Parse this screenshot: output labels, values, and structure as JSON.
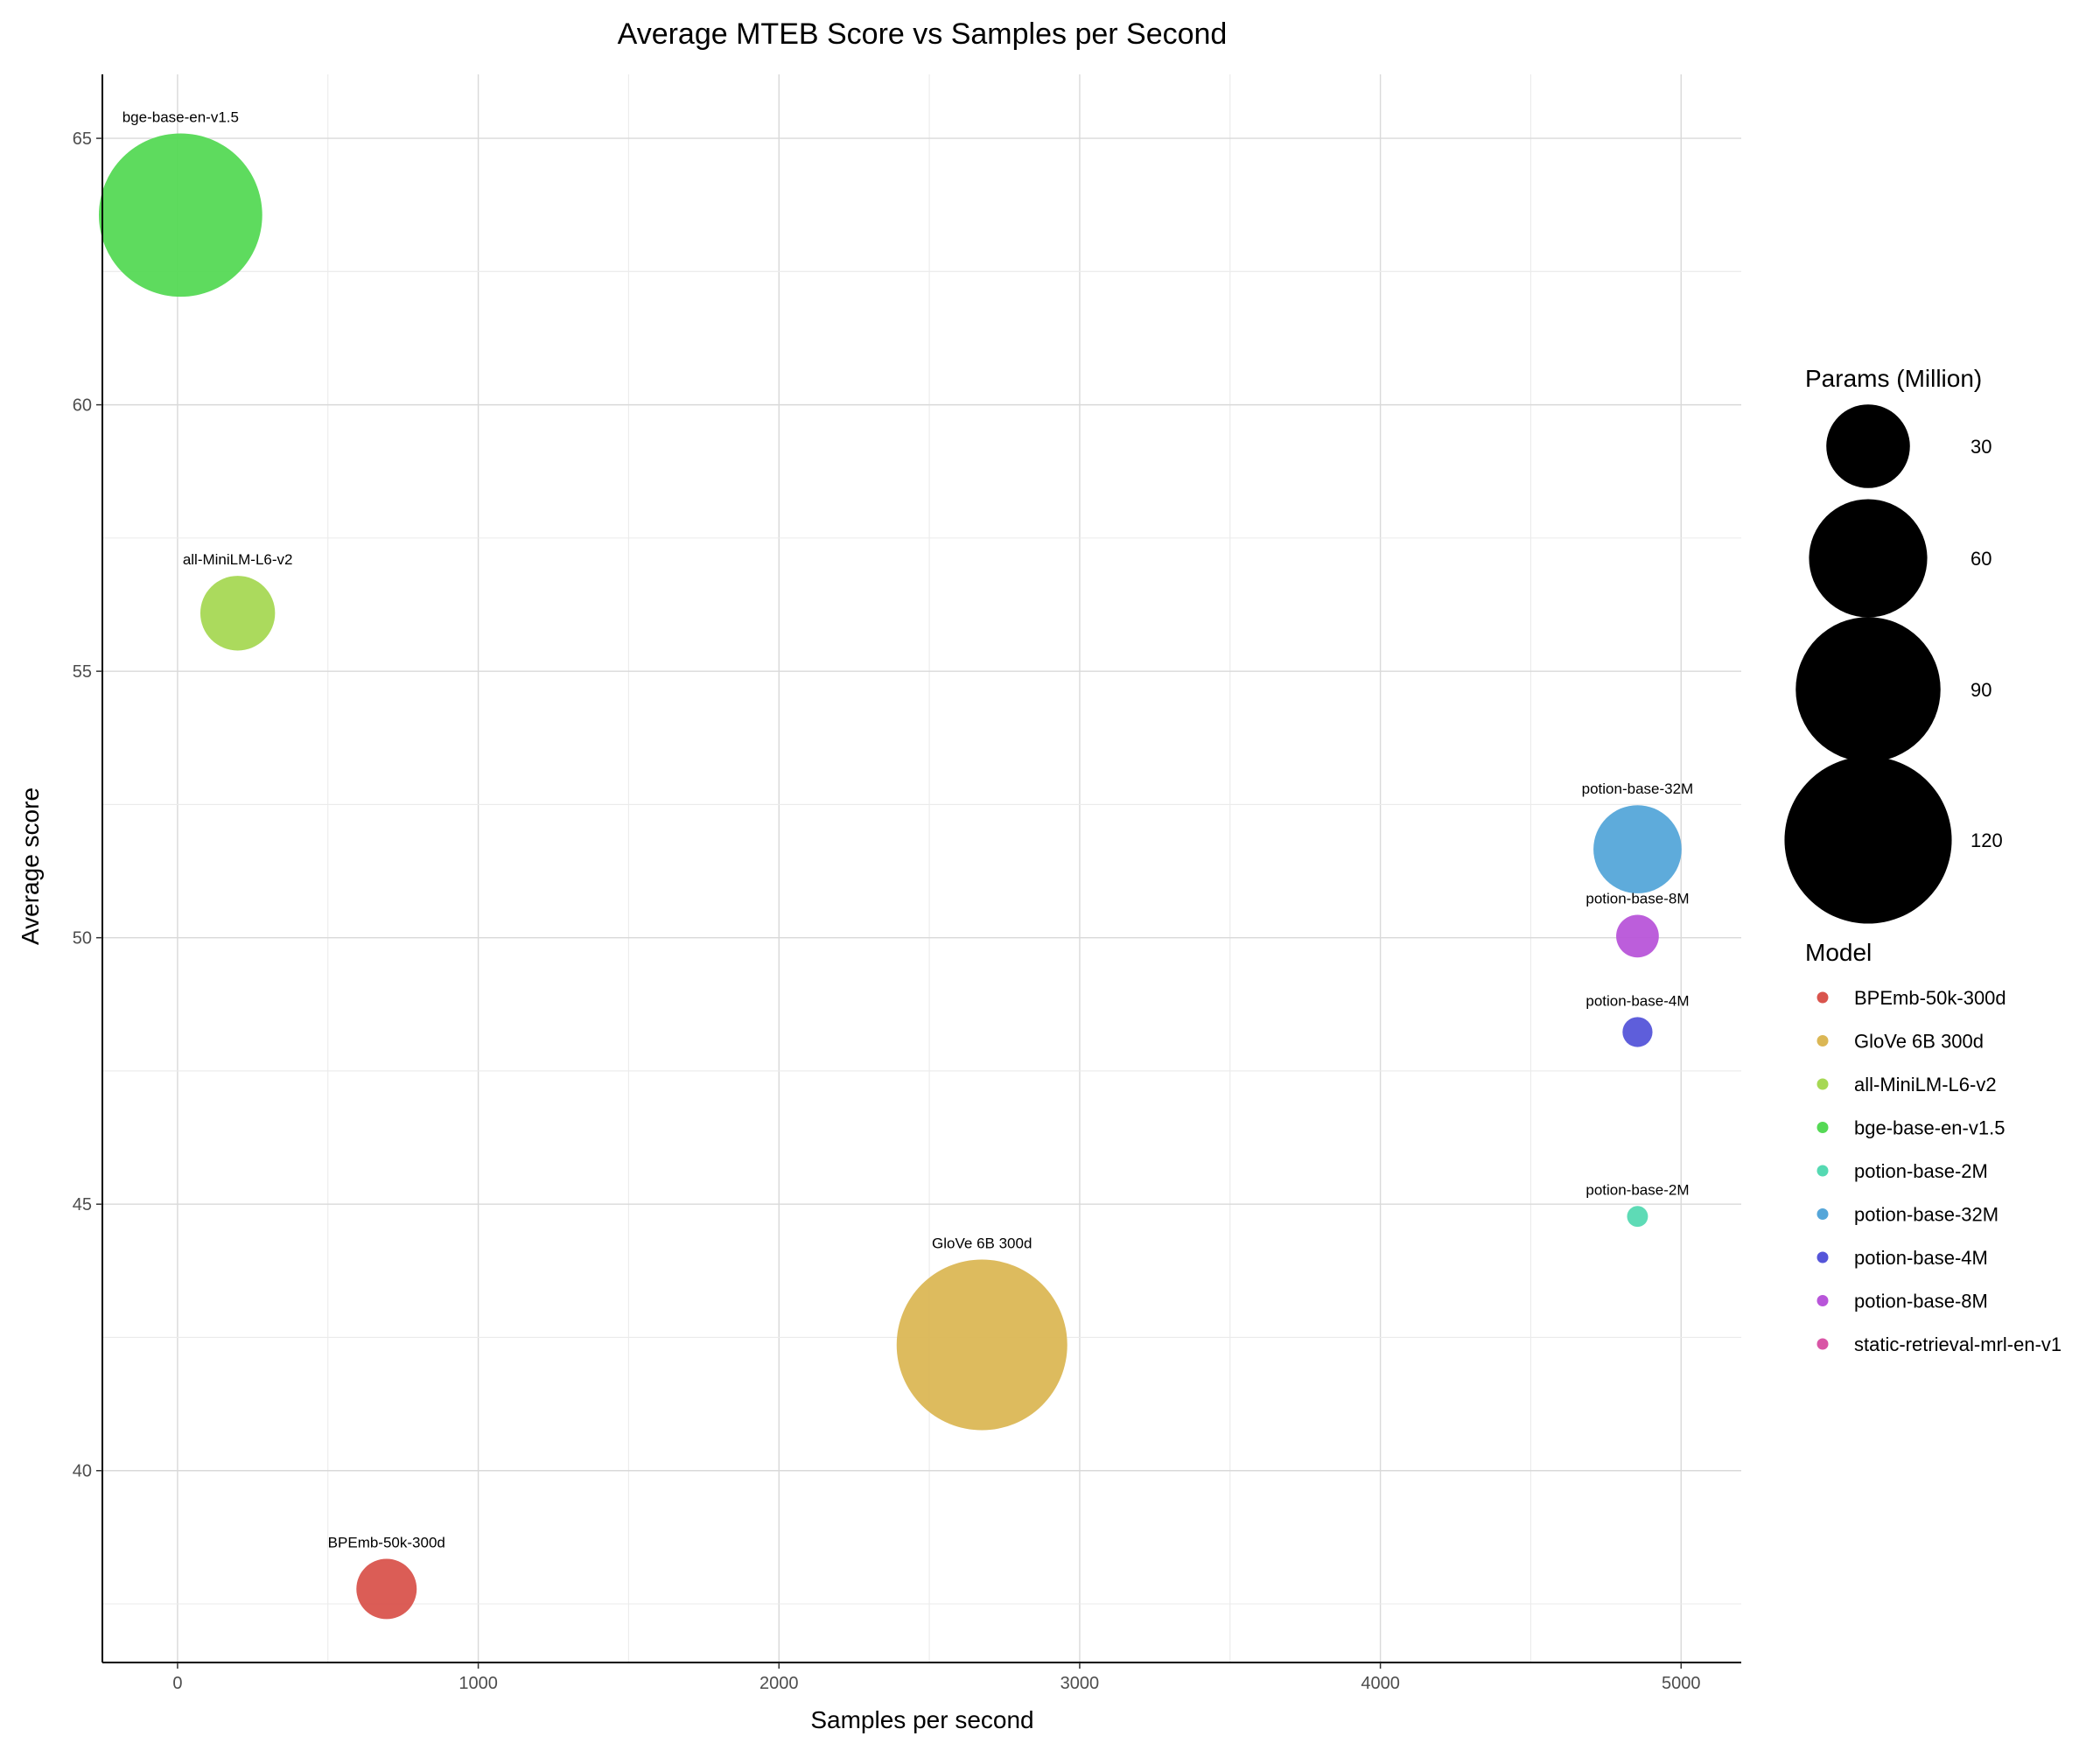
{
  "chart_data": {
    "type": "scatter",
    "title": "Average MTEB Score vs Samples per Second",
    "xlabel": "Samples per second",
    "ylabel": "Average score",
    "xlim": [
      -250,
      5200
    ],
    "ylim": [
      36.4,
      66.2
    ],
    "x_ticks": [
      0,
      1000,
      2000,
      3000,
      4000,
      5000
    ],
    "y_ticks": [
      40,
      45,
      50,
      55,
      60,
      65
    ],
    "grid": true,
    "legend_position": "right",
    "size_legend": {
      "title": "Params (Million)",
      "values": [
        30,
        60,
        90,
        120
      ]
    },
    "color_legend": {
      "title": "Model",
      "entries": [
        {
          "name": "BPEmb-50k-300d",
          "color": "#D9544D"
        },
        {
          "name": "GloVe 6B 300d",
          "color": "#DBB755"
        },
        {
          "name": "all-MiniLM-L6-v2",
          "color": "#A6D854"
        },
        {
          "name": "bge-base-en-v1.5",
          "color": "#55D955"
        },
        {
          "name": "potion-base-2M",
          "color": "#55D9B2"
        },
        {
          "name": "potion-base-32M",
          "color": "#55A6D9"
        },
        {
          "name": "potion-base-4M",
          "color": "#5555D9"
        },
        {
          "name": "potion-base-8M",
          "color": "#B855D9"
        },
        {
          "name": "static-retrieval-mrl-en-v1",
          "color": "#D955A6"
        }
      ]
    },
    "points": [
      {
        "label": "bge-base-en-v1.5",
        "x": 10,
        "y": 63.56,
        "params": 110,
        "color": "#55D955"
      },
      {
        "label": "all-MiniLM-L6-v2",
        "x": 200,
        "y": 56.09,
        "params": 23,
        "color": "#A6D854"
      },
      {
        "label": "potion-base-32M",
        "x": 4855,
        "y": 51.66,
        "params": 32,
        "color": "#55A6D9"
      },
      {
        "label": "potion-base-8M",
        "x": 4855,
        "y": 50.03,
        "params": 7.5,
        "color": "#B855D9"
      },
      {
        "label": "potion-base-4M",
        "x": 4855,
        "y": 48.23,
        "params": 3.7,
        "color": "#5555D9"
      },
      {
        "label": "potion-base-2M",
        "x": 4855,
        "y": 44.77,
        "params": 1.8,
        "color": "#55D9B2"
      },
      {
        "label": "GloVe 6B 300d",
        "x": 2675,
        "y": 42.36,
        "params": 120,
        "color": "#DBB755"
      },
      {
        "label": "BPEmb-50k-300d",
        "x": 695,
        "y": 37.78,
        "params": 15,
        "color": "#D9544D"
      }
    ]
  }
}
